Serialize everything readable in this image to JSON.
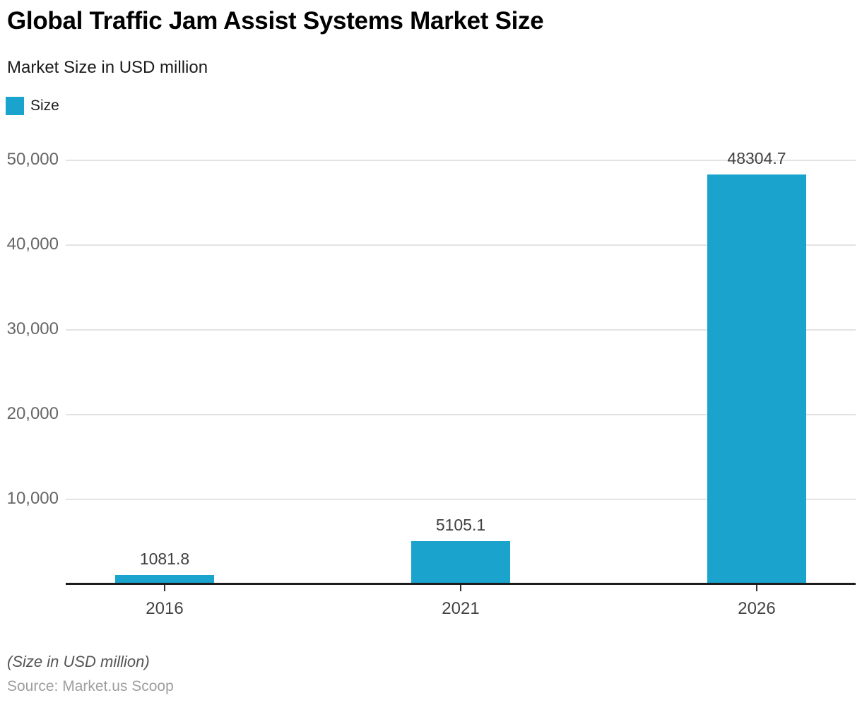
{
  "header": {
    "title": "Global Traffic Jam Assist Systems Market Size",
    "subtitle": "Market Size in USD million"
  },
  "legend": {
    "label": "Size",
    "color": "#1aa3cd"
  },
  "chart_data": {
    "type": "bar",
    "title": "Global Traffic Jam Assist Systems Market Size",
    "subtitle": "Market Size in USD million",
    "categories": [
      "2016",
      "2021",
      "2026"
    ],
    "series": [
      {
        "name": "Size",
        "values": [
          1081.8,
          5105.1,
          48304.7
        ]
      }
    ],
    "value_labels": [
      "1081.8",
      "5105.1",
      "48304.7"
    ],
    "xlabel": "",
    "ylabel": "",
    "ylim": [
      0,
      50000
    ],
    "yticks": [
      10000,
      20000,
      30000,
      40000,
      50000
    ],
    "ytick_labels": [
      "10,000",
      "20,000",
      "30,000",
      "40,000",
      "50,000"
    ],
    "grid": true,
    "legend_position": "top-left",
    "bar_color": "#1aa3cd",
    "gridline_color": "#e3e3e3",
    "axis_color": "#1c1c1c"
  },
  "footer": {
    "note": "(Size in USD million)",
    "source": "Source: Market.us Scoop"
  }
}
